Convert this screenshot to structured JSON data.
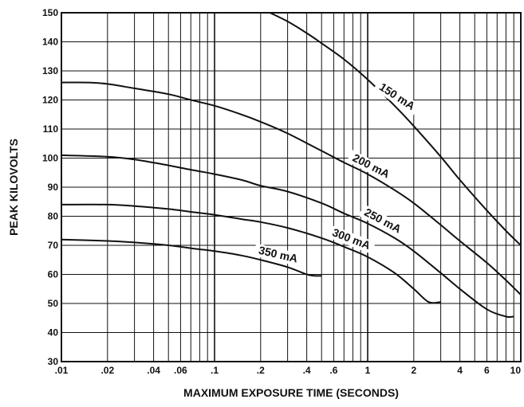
{
  "chart_data": {
    "type": "line",
    "xlabel": "MAXIMUM EXPOSURE TIME (SECONDS)",
    "ylabel": "PEAK KILOVOLTS",
    "x_scale": "log",
    "xlim": [
      0.01,
      10
    ],
    "ylim": [
      30,
      150
    ],
    "x_ticks": [
      0.01,
      0.02,
      0.04,
      0.06,
      0.1,
      0.2,
      0.4,
      0.6,
      1,
      2,
      4,
      6,
      10
    ],
    "x_tick_labels": [
      ".01",
      ".02",
      ".04",
      ".06",
      ".1",
      ".2",
      ".4",
      ".6",
      "1",
      "2",
      "4",
      "6",
      "10"
    ],
    "y_ticks": [
      30,
      40,
      50,
      60,
      70,
      80,
      90,
      100,
      110,
      120,
      130,
      140,
      150
    ],
    "y_tick_labels": [
      "30",
      "40",
      "50",
      "60",
      "70",
      "80",
      "90",
      "100",
      "110",
      "120",
      "130",
      "140",
      "150"
    ],
    "grid": true,
    "series": [
      {
        "name": "150 mA",
        "x": [
          0.23,
          0.3,
          0.4,
          0.5,
          0.7,
          1.0,
          1.5,
          2.0,
          3.0,
          4.0,
          6.0,
          8.0,
          10.0
        ],
        "y": [
          150,
          147,
          143,
          139.5,
          134,
          127,
          118,
          111,
          100.5,
          92.5,
          82,
          75,
          70
        ]
      },
      {
        "name": "200 mA",
        "x": [
          0.01,
          0.015,
          0.02,
          0.03,
          0.05,
          0.07,
          0.1,
          0.15,
          0.2,
          0.3,
          0.5,
          0.7,
          1.0,
          1.5,
          2.0,
          3.0,
          4.0,
          6.0,
          8.0,
          10.0
        ],
        "y": [
          126,
          126,
          125.5,
          124,
          122,
          120,
          118,
          115,
          112.5,
          108.5,
          102.5,
          98.5,
          94.5,
          89,
          84.5,
          77,
          71.5,
          64,
          58,
          53
        ]
      },
      {
        "name": "250 mA",
        "x": [
          0.01,
          0.02,
          0.03,
          0.05,
          0.07,
          0.1,
          0.15,
          0.2,
          0.3,
          0.5,
          0.7,
          1.0,
          1.5,
          2.0,
          3.0,
          4.0,
          6.0,
          8.0,
          9.0
        ],
        "y": [
          101,
          100.5,
          99.5,
          97.5,
          96,
          94.5,
          92.5,
          90.5,
          88.5,
          84.5,
          81,
          77.5,
          72.5,
          68,
          60.5,
          55,
          48,
          45.5,
          45.5
        ]
      },
      {
        "name": "300 mA",
        "x": [
          0.01,
          0.02,
          0.03,
          0.05,
          0.07,
          0.1,
          0.15,
          0.2,
          0.3,
          0.5,
          0.7,
          1.0,
          1.5,
          2.0,
          2.5,
          3.0
        ],
        "y": [
          84,
          84,
          83.5,
          82.5,
          81.5,
          80.5,
          79,
          78,
          76,
          72.5,
          69.5,
          66,
          60.5,
          55,
          50.5,
          50.5
        ]
      },
      {
        "name": "350 mA",
        "x": [
          0.01,
          0.02,
          0.03,
          0.05,
          0.07,
          0.1,
          0.15,
          0.2,
          0.3,
          0.4,
          0.45,
          0.5
        ],
        "y": [
          72,
          71.5,
          71,
          70,
          69,
          68,
          66.5,
          65,
          62.5,
          60,
          59.5,
          59.5
        ]
      }
    ]
  }
}
